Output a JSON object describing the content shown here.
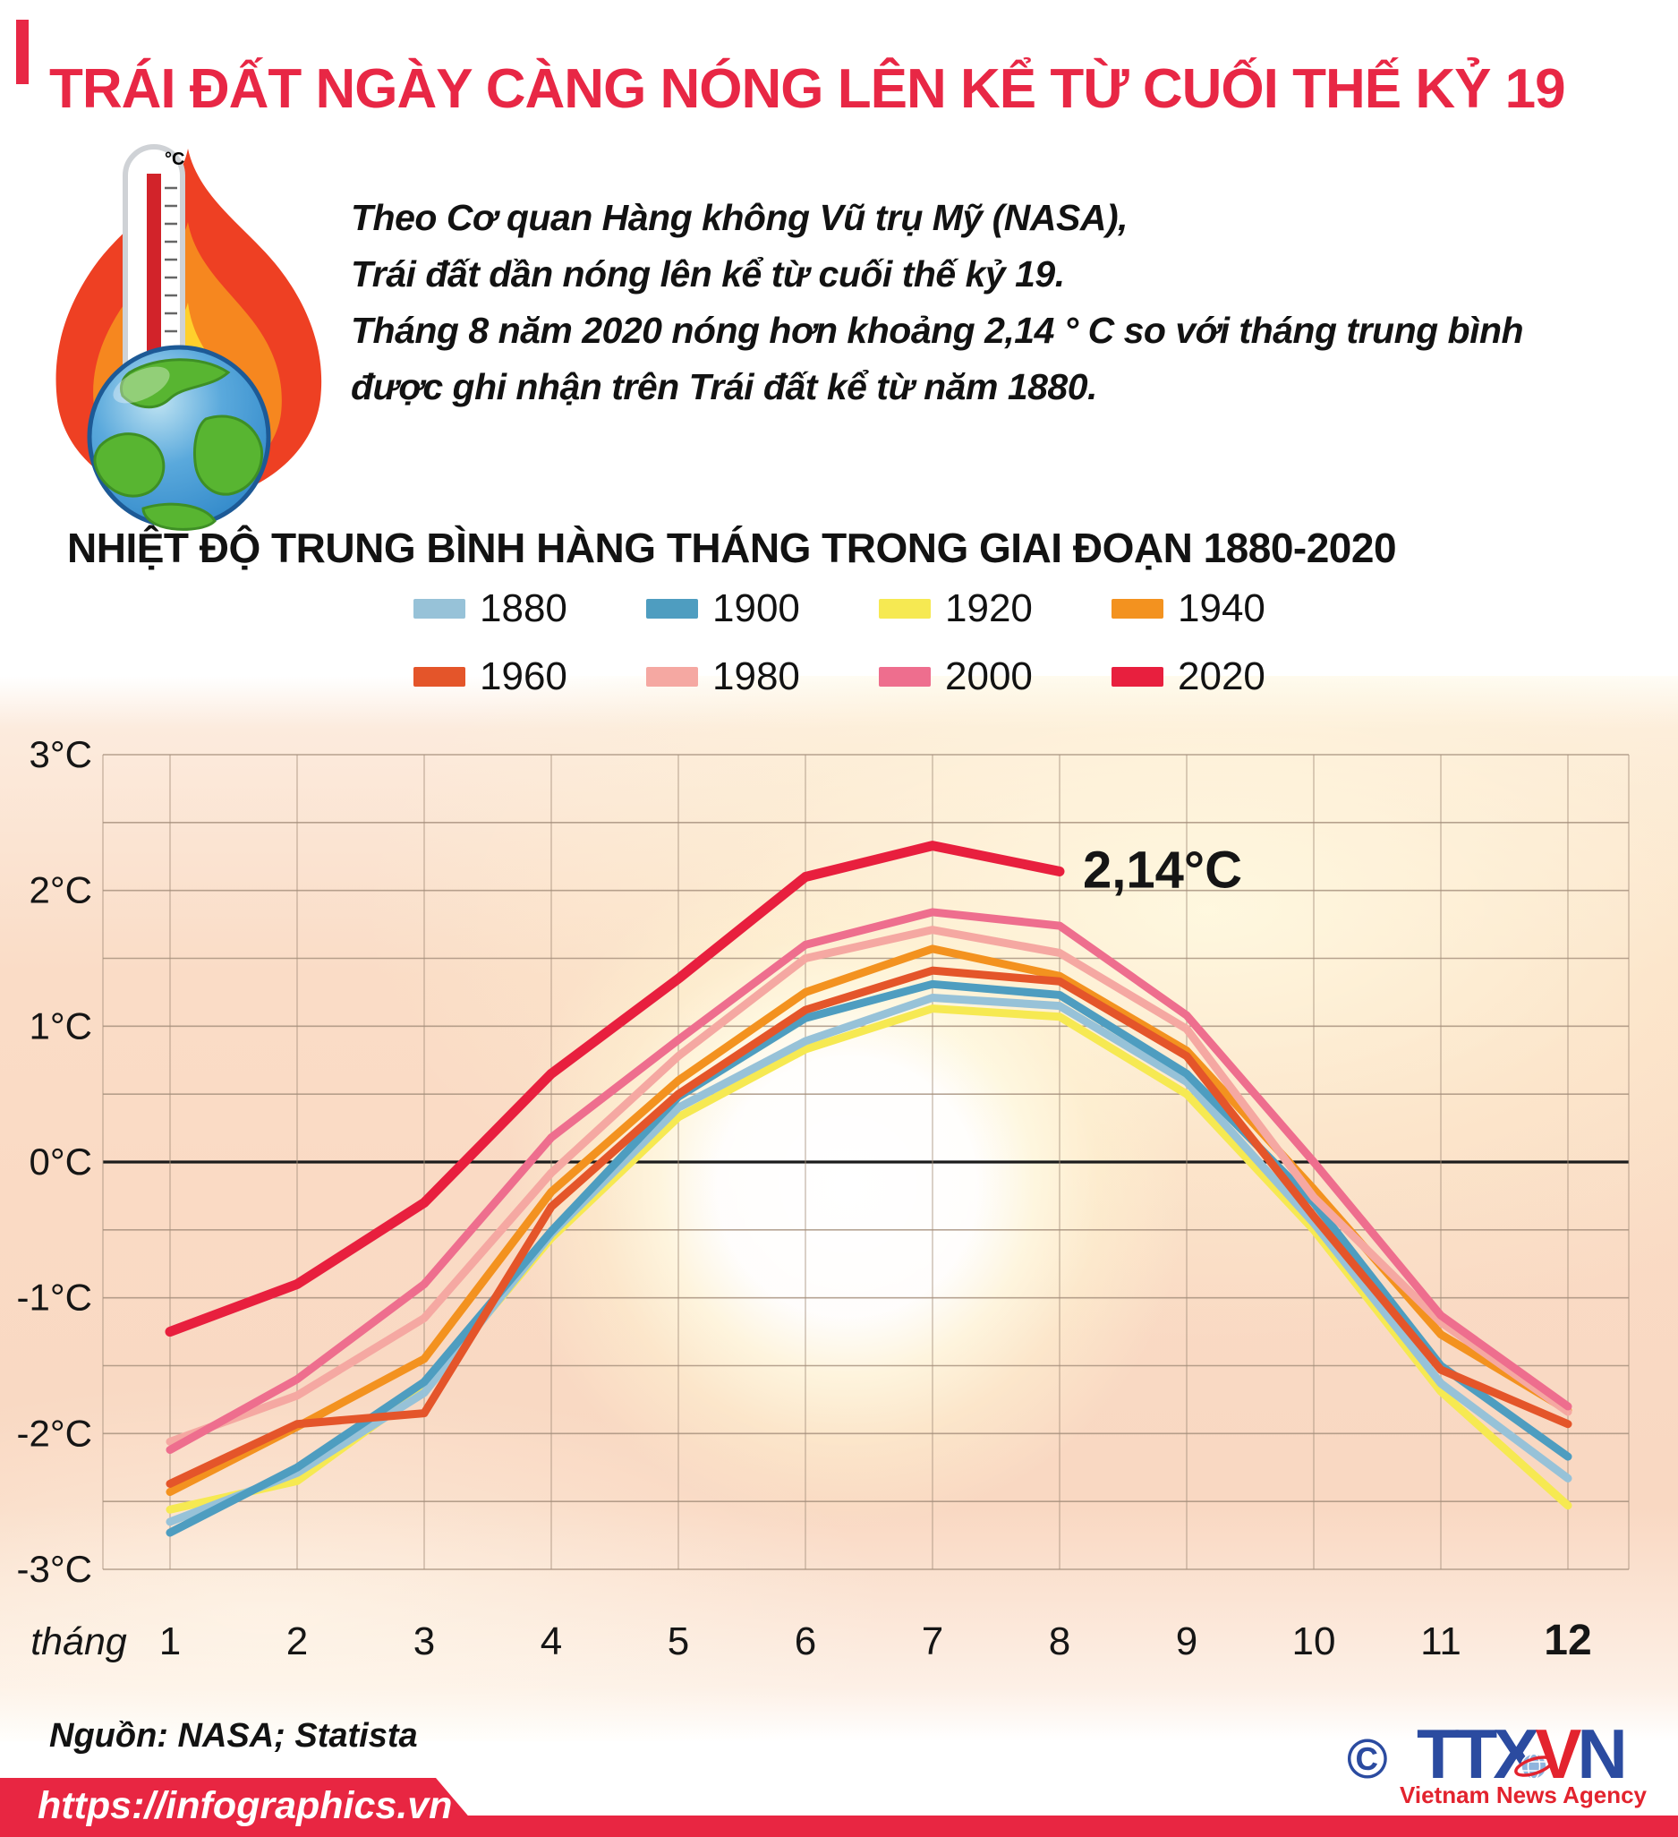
{
  "header": {
    "title": "TRÁI ĐẤT NGÀY CÀNG NÓNG LÊN KỂ TỪ CUỐI THẾ KỶ 19"
  },
  "intro": {
    "lines": [
      "Theo Cơ quan Hàng không Vũ trụ Mỹ (NASA),",
      "Trái đất dần nóng lên kể từ cuối thế kỷ 19.",
      "Tháng 8 năm 2020 nóng hơn khoảng 2,14 ° C so với tháng trung bình",
      "được ghi nhận trên Trái đất kể từ năm 1880."
    ]
  },
  "icon": {
    "thermometer_unit": "°C"
  },
  "chart_data": {
    "type": "line",
    "title": "NHIỆT ĐỘ TRUNG BÌNH HÀNG THÁNG TRONG GIAI ĐOẠN 1880-2020",
    "xlabel": "tháng",
    "ylabel": "°C",
    "ylim": [
      -3,
      3
    ],
    "grid": true,
    "x_label_prefix": "tháng",
    "x_ticks": [
      "1",
      "2",
      "3",
      "4",
      "5",
      "6",
      "7",
      "8",
      "9",
      "10",
      "11",
      "12"
    ],
    "y_ticks": [
      "3°C",
      "2°C",
      "1°C",
      "0°C",
      "-1°C",
      "-2°C",
      "-3°C"
    ],
    "legend_rows": [
      [
        "1880",
        "1900",
        "1920",
        "1940"
      ],
      [
        "1960",
        "1980",
        "2000",
        "2020"
      ]
    ],
    "series": [
      {
        "name": "1920",
        "color": "#f6e952",
        "values": [
          -2.56,
          -2.35,
          -1.67,
          -0.56,
          0.33,
          0.83,
          1.13,
          1.07,
          0.5,
          -0.5,
          -1.69,
          -2.53
        ]
      },
      {
        "name": "1880",
        "color": "#97c2d8",
        "values": [
          -2.65,
          -2.29,
          -1.7,
          -0.53,
          0.4,
          0.89,
          1.21,
          1.15,
          0.59,
          -0.45,
          -1.63,
          -2.33
        ]
      },
      {
        "name": "1900",
        "color": "#4e9dc0",
        "values": [
          -2.73,
          -2.25,
          -1.62,
          -0.51,
          0.48,
          1.06,
          1.31,
          1.23,
          0.65,
          -0.3,
          -1.5,
          -2.17
        ]
      },
      {
        "name": "1940",
        "color": "#f3921f",
        "values": [
          -2.43,
          -1.95,
          -1.45,
          -0.22,
          0.6,
          1.25,
          1.57,
          1.37,
          0.82,
          -0.2,
          -1.27,
          -1.83
        ]
      },
      {
        "name": "1960",
        "color": "#e4552a",
        "values": [
          -2.37,
          -1.93,
          -1.85,
          -0.33,
          0.5,
          1.12,
          1.41,
          1.33,
          0.78,
          -0.4,
          -1.53,
          -1.93
        ]
      },
      {
        "name": "1980",
        "color": "#f5a8a2",
        "values": [
          -2.06,
          -1.72,
          -1.15,
          -0.08,
          0.78,
          1.5,
          1.71,
          1.54,
          0.98,
          -0.26,
          -1.18,
          -1.84
        ]
      },
      {
        "name": "2000",
        "color": "#ee6e8e",
        "values": [
          -2.12,
          -1.6,
          -0.9,
          0.18,
          0.9,
          1.6,
          1.84,
          1.74,
          1.08,
          0.0,
          -1.13,
          -1.8
        ]
      },
      {
        "name": "2020",
        "color": "#e81f3e",
        "values": [
          -1.25,
          -0.9,
          -0.3,
          0.65,
          1.35,
          2.1,
          2.33,
          2.14
        ]
      }
    ],
    "annotation": {
      "text": "2,14°C",
      "x": 8,
      "y": 2.14
    }
  },
  "footer": {
    "source": "Nguồn: NASA; Statista",
    "url": "https://infographics.vn",
    "logo": {
      "copyright": "©",
      "part1": "TTX",
      "part2": "V",
      "part3": "N",
      "subtitle": "Vietnam News Agency"
    }
  },
  "colors": {
    "title_red": "#e82745",
    "bar_red": "#e82642",
    "logo_blue": "#2b4ba0",
    "logo_red": "#e3232e",
    "zero_line": "#1c1c1c",
    "gridline": "#a58f7c"
  }
}
